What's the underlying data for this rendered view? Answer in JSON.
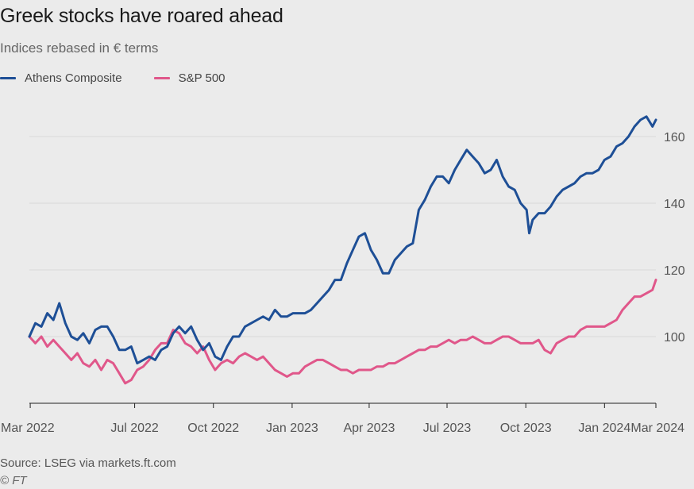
{
  "chart_data": {
    "type": "line",
    "title": "Greek stocks have roared ahead",
    "subtitle": "Indices rebased in € terms",
    "source": "Source: LSEG via markets.ft.com",
    "copyright": "© FT",
    "xlabel": "",
    "ylabel": "",
    "x_range": [
      "2022-02-28",
      "2024-03-01"
    ],
    "ylim": [
      80,
      170
    ],
    "y_ticks": [
      100,
      120,
      140,
      160
    ],
    "y_tick_labels": [
      "100",
      "120",
      "140",
      "160"
    ],
    "x_ticks": [
      "2022-03-01",
      "2022-07-01",
      "2022-10-01",
      "2023-01-01",
      "2023-04-01",
      "2023-07-01",
      "2023-10-01",
      "2024-01-01",
      "2024-03-01"
    ],
    "x_tick_labels": [
      "Mar 2022",
      "Jul 2022",
      "Oct 2022",
      "Jan 2023",
      "Apr 2023",
      "Jul 2023",
      "Oct 2023",
      "Jan 2024",
      "Mar 2024"
    ],
    "grid": "horizontal",
    "legend_position": "top-left",
    "series": [
      {
        "name": "Athens Composite",
        "color": "#1e4f96",
        "points": [
          [
            "2022-02-28",
            100
          ],
          [
            "2022-03-07",
            104
          ],
          [
            "2022-03-14",
            103
          ],
          [
            "2022-03-21",
            107
          ],
          [
            "2022-03-28",
            105
          ],
          [
            "2022-04-04",
            110
          ],
          [
            "2022-04-11",
            104
          ],
          [
            "2022-04-18",
            100
          ],
          [
            "2022-04-25",
            99
          ],
          [
            "2022-05-02",
            101
          ],
          [
            "2022-05-09",
            98
          ],
          [
            "2022-05-16",
            102
          ],
          [
            "2022-05-23",
            103
          ],
          [
            "2022-05-30",
            103
          ],
          [
            "2022-06-06",
            100
          ],
          [
            "2022-06-13",
            96
          ],
          [
            "2022-06-20",
            96
          ],
          [
            "2022-06-27",
            97
          ],
          [
            "2022-07-04",
            92
          ],
          [
            "2022-07-11",
            93
          ],
          [
            "2022-07-18",
            94
          ],
          [
            "2022-07-25",
            93
          ],
          [
            "2022-08-01",
            96
          ],
          [
            "2022-08-08",
            97
          ],
          [
            "2022-08-15",
            101
          ],
          [
            "2022-08-22",
            103
          ],
          [
            "2022-08-29",
            101
          ],
          [
            "2022-09-05",
            103
          ],
          [
            "2022-09-12",
            99
          ],
          [
            "2022-09-19",
            96
          ],
          [
            "2022-09-26",
            98
          ],
          [
            "2022-10-03",
            94
          ],
          [
            "2022-10-10",
            93
          ],
          [
            "2022-10-17",
            97
          ],
          [
            "2022-10-24",
            100
          ],
          [
            "2022-10-31",
            100
          ],
          [
            "2022-11-07",
            103
          ],
          [
            "2022-11-14",
            104
          ],
          [
            "2022-11-21",
            105
          ],
          [
            "2022-11-28",
            106
          ],
          [
            "2022-12-05",
            105
          ],
          [
            "2022-12-12",
            108
          ],
          [
            "2022-12-19",
            106
          ],
          [
            "2022-12-26",
            106
          ],
          [
            "2023-01-02",
            107
          ],
          [
            "2023-01-09",
            107
          ],
          [
            "2023-01-16",
            107
          ],
          [
            "2023-01-23",
            108
          ],
          [
            "2023-01-30",
            110
          ],
          [
            "2023-02-06",
            112
          ],
          [
            "2023-02-13",
            114
          ],
          [
            "2023-02-20",
            117
          ],
          [
            "2023-02-27",
            117
          ],
          [
            "2023-03-06",
            122
          ],
          [
            "2023-03-13",
            126
          ],
          [
            "2023-03-20",
            130
          ],
          [
            "2023-03-27",
            131
          ],
          [
            "2023-04-03",
            126
          ],
          [
            "2023-04-10",
            123
          ],
          [
            "2023-04-17",
            119
          ],
          [
            "2023-04-24",
            119
          ],
          [
            "2023-05-01",
            123
          ],
          [
            "2023-05-08",
            125
          ],
          [
            "2023-05-15",
            127
          ],
          [
            "2023-05-22",
            128
          ],
          [
            "2023-05-29",
            138
          ],
          [
            "2023-06-05",
            141
          ],
          [
            "2023-06-12",
            145
          ],
          [
            "2023-06-19",
            148
          ],
          [
            "2023-06-26",
            148
          ],
          [
            "2023-07-03",
            146
          ],
          [
            "2023-07-10",
            150
          ],
          [
            "2023-07-17",
            153
          ],
          [
            "2023-07-24",
            156
          ],
          [
            "2023-07-31",
            154
          ],
          [
            "2023-08-07",
            152
          ],
          [
            "2023-08-14",
            149
          ],
          [
            "2023-08-21",
            150
          ],
          [
            "2023-08-28",
            153
          ],
          [
            "2023-09-04",
            148
          ],
          [
            "2023-09-11",
            145
          ],
          [
            "2023-09-18",
            144
          ],
          [
            "2023-09-25",
            140
          ],
          [
            "2023-10-02",
            138
          ],
          [
            "2023-10-05",
            131
          ],
          [
            "2023-10-09",
            135
          ],
          [
            "2023-10-16",
            137
          ],
          [
            "2023-10-23",
            137
          ],
          [
            "2023-10-30",
            139
          ],
          [
            "2023-11-06",
            142
          ],
          [
            "2023-11-13",
            144
          ],
          [
            "2023-11-20",
            145
          ],
          [
            "2023-11-27",
            146
          ],
          [
            "2023-12-04",
            148
          ],
          [
            "2023-12-11",
            149
          ],
          [
            "2023-12-18",
            149
          ],
          [
            "2023-12-25",
            150
          ],
          [
            "2024-01-01",
            153
          ],
          [
            "2024-01-08",
            154
          ],
          [
            "2024-01-15",
            157
          ],
          [
            "2024-01-22",
            158
          ],
          [
            "2024-01-29",
            160
          ],
          [
            "2024-02-05",
            163
          ],
          [
            "2024-02-12",
            165
          ],
          [
            "2024-02-19",
            166
          ],
          [
            "2024-02-26",
            163
          ],
          [
            "2024-03-01",
            165
          ]
        ]
      },
      {
        "name": "S&P 500",
        "color": "#e0578a",
        "points": [
          [
            "2022-02-28",
            100
          ],
          [
            "2022-03-07",
            98
          ],
          [
            "2022-03-14",
            100
          ],
          [
            "2022-03-21",
            97
          ],
          [
            "2022-03-28",
            99
          ],
          [
            "2022-04-04",
            97
          ],
          [
            "2022-04-11",
            95
          ],
          [
            "2022-04-18",
            93
          ],
          [
            "2022-04-25",
            95
          ],
          [
            "2022-05-02",
            92
          ],
          [
            "2022-05-09",
            91
          ],
          [
            "2022-05-16",
            93
          ],
          [
            "2022-05-23",
            90
          ],
          [
            "2022-05-30",
            93
          ],
          [
            "2022-06-06",
            92
          ],
          [
            "2022-06-13",
            89
          ],
          [
            "2022-06-20",
            86
          ],
          [
            "2022-06-27",
            87
          ],
          [
            "2022-07-04",
            90
          ],
          [
            "2022-07-11",
            91
          ],
          [
            "2022-07-18",
            93
          ],
          [
            "2022-07-25",
            96
          ],
          [
            "2022-08-01",
            98
          ],
          [
            "2022-08-08",
            98
          ],
          [
            "2022-08-15",
            102
          ],
          [
            "2022-08-22",
            101
          ],
          [
            "2022-08-29",
            98
          ],
          [
            "2022-09-05",
            97
          ],
          [
            "2022-09-12",
            95
          ],
          [
            "2022-09-19",
            97
          ],
          [
            "2022-09-26",
            93
          ],
          [
            "2022-10-03",
            90
          ],
          [
            "2022-10-10",
            92
          ],
          [
            "2022-10-17",
            93
          ],
          [
            "2022-10-24",
            92
          ],
          [
            "2022-10-31",
            94
          ],
          [
            "2022-11-07",
            95
          ],
          [
            "2022-11-14",
            94
          ],
          [
            "2022-11-21",
            93
          ],
          [
            "2022-11-28",
            94
          ],
          [
            "2022-12-05",
            92
          ],
          [
            "2022-12-12",
            90
          ],
          [
            "2022-12-19",
            89
          ],
          [
            "2022-12-26",
            88
          ],
          [
            "2023-01-02",
            89
          ],
          [
            "2023-01-09",
            89
          ],
          [
            "2023-01-16",
            91
          ],
          [
            "2023-01-23",
            92
          ],
          [
            "2023-01-30",
            93
          ],
          [
            "2023-02-06",
            93
          ],
          [
            "2023-02-13",
            92
          ],
          [
            "2023-02-20",
            91
          ],
          [
            "2023-02-27",
            90
          ],
          [
            "2023-03-06",
            90
          ],
          [
            "2023-03-13",
            89
          ],
          [
            "2023-03-20",
            90
          ],
          [
            "2023-03-27",
            90
          ],
          [
            "2023-04-03",
            90
          ],
          [
            "2023-04-10",
            91
          ],
          [
            "2023-04-17",
            91
          ],
          [
            "2023-04-24",
            92
          ],
          [
            "2023-05-01",
            92
          ],
          [
            "2023-05-08",
            93
          ],
          [
            "2023-05-15",
            94
          ],
          [
            "2023-05-22",
            95
          ],
          [
            "2023-05-29",
            96
          ],
          [
            "2023-06-05",
            96
          ],
          [
            "2023-06-12",
            97
          ],
          [
            "2023-06-19",
            97
          ],
          [
            "2023-06-26",
            98
          ],
          [
            "2023-07-03",
            99
          ],
          [
            "2023-07-10",
            98
          ],
          [
            "2023-07-17",
            99
          ],
          [
            "2023-07-24",
            99
          ],
          [
            "2023-07-31",
            100
          ],
          [
            "2023-08-07",
            99
          ],
          [
            "2023-08-14",
            98
          ],
          [
            "2023-08-21",
            98
          ],
          [
            "2023-08-28",
            99
          ],
          [
            "2023-09-04",
            100
          ],
          [
            "2023-09-11",
            100
          ],
          [
            "2023-09-18",
            99
          ],
          [
            "2023-09-25",
            98
          ],
          [
            "2023-10-02",
            98
          ],
          [
            "2023-10-09",
            98
          ],
          [
            "2023-10-16",
            99
          ],
          [
            "2023-10-23",
            96
          ],
          [
            "2023-10-30",
            95
          ],
          [
            "2023-11-06",
            98
          ],
          [
            "2023-11-13",
            99
          ],
          [
            "2023-11-20",
            100
          ],
          [
            "2023-11-27",
            100
          ],
          [
            "2023-12-04",
            102
          ],
          [
            "2023-12-11",
            103
          ],
          [
            "2023-12-18",
            103
          ],
          [
            "2023-12-25",
            103
          ],
          [
            "2024-01-01",
            103
          ],
          [
            "2024-01-08",
            104
          ],
          [
            "2024-01-15",
            105
          ],
          [
            "2024-01-22",
            108
          ],
          [
            "2024-01-29",
            110
          ],
          [
            "2024-02-05",
            112
          ],
          [
            "2024-02-12",
            112
          ],
          [
            "2024-02-19",
            113
          ],
          [
            "2024-02-26",
            114
          ],
          [
            "2024-03-01",
            117
          ]
        ]
      }
    ]
  }
}
